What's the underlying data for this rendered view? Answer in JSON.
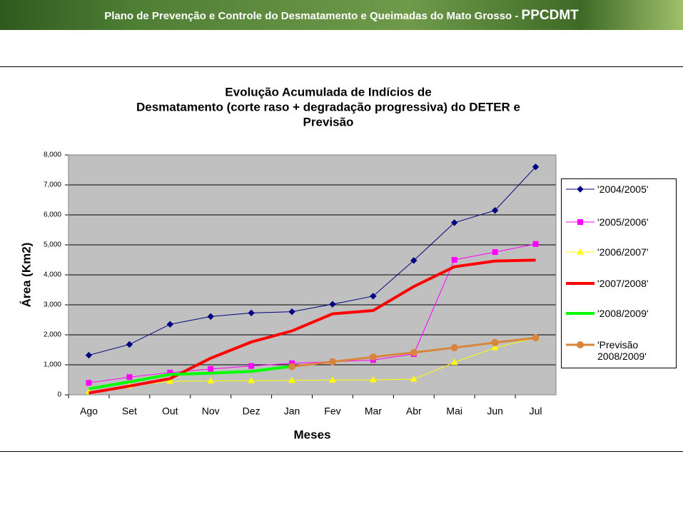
{
  "header": {
    "title": "Plano de Prevenção e Controle do Desmatamento e Queimadas  do Mato Grosso - ",
    "acronym": "PPCDMT"
  },
  "chart_data": {
    "type": "line",
    "title": [
      "Evolução Acumulada de Indícios de",
      "Desmatamento (corte raso + degradação progressiva) do DETER e",
      "Previsão"
    ],
    "xlabel": "Meses",
    "ylabel": "Área (Km2)",
    "categories": [
      "Ago",
      "Set",
      "Out",
      "Nov",
      "Dez",
      "Jan",
      "Fev",
      "Mar",
      "Abr",
      "Mai",
      "Jun",
      "Jul"
    ],
    "ylim": [
      0,
      8000
    ],
    "yticks": [
      0,
      {
        "value": 1000,
        "label": "1,000"
      },
      {
        "value": 2000,
        "label": "2,000"
      },
      {
        "value": 3000,
        "label": "3,000"
      },
      {
        "value": 4000,
        "label": "4,000"
      },
      {
        "value": 5000,
        "label": "5,000"
      },
      {
        "value": 6000,
        "label": "6,000"
      },
      {
        "value": 7000,
        "label": "7,000"
      },
      {
        "value": 8000,
        "label": "8,000"
      }
    ],
    "grid": true,
    "legend": "right",
    "background": "#c0c0c0",
    "series": [
      {
        "name": "'2004/2005'",
        "color": "#000080",
        "marker": "diamond",
        "width": 1,
        "values": [
          1320,
          1680,
          2350,
          2610,
          2730,
          2770,
          3020,
          3290,
          4480,
          5740,
          6150,
          7600
        ]
      },
      {
        "name": "'2005/2006'",
        "color": "#ff00ff",
        "marker": "square",
        "width": 1,
        "values": [
          400,
          590,
          740,
          860,
          960,
          1050,
          1100,
          1160,
          1360,
          4500,
          4760,
          5030
        ]
      },
      {
        "name": "'2006/2007'",
        "color": "#ffff00",
        "marker": "triangle",
        "width": 1,
        "values": [
          100,
          300,
          450,
          460,
          470,
          480,
          490,
          500,
          520,
          1080,
          1570,
          1900
        ]
      },
      {
        "name": "'2007/2008'",
        "color": "#ff0000",
        "marker": "none",
        "width": 4,
        "values": [
          60,
          290,
          540,
          1220,
          1760,
          2130,
          2700,
          2810,
          3610,
          4270,
          4460,
          4490
        ]
      },
      {
        "name": "'2008/2009'",
        "color": "#00ff00",
        "marker": "none",
        "width": 4,
        "values": [
          200,
          430,
          680,
          720,
          780,
          950,
          null,
          null,
          null,
          null,
          null,
          null
        ]
      },
      {
        "name": "'Previsão 2008/2009'",
        "color": "#d9853b",
        "marker": "circle",
        "width": 3,
        "values": [
          null,
          null,
          null,
          null,
          null,
          940,
          1100,
          1260,
          1410,
          1570,
          1740,
          1900
        ]
      }
    ]
  }
}
